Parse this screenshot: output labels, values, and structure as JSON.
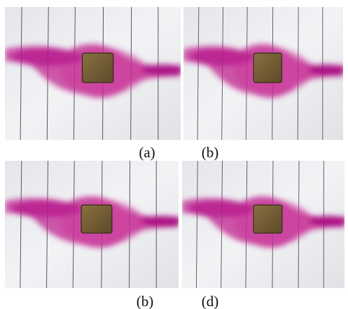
{
  "figure": {
    "captions": [
      "(a)",
      "(b)",
      "(b)",
      "(d)"
    ]
  }
}
